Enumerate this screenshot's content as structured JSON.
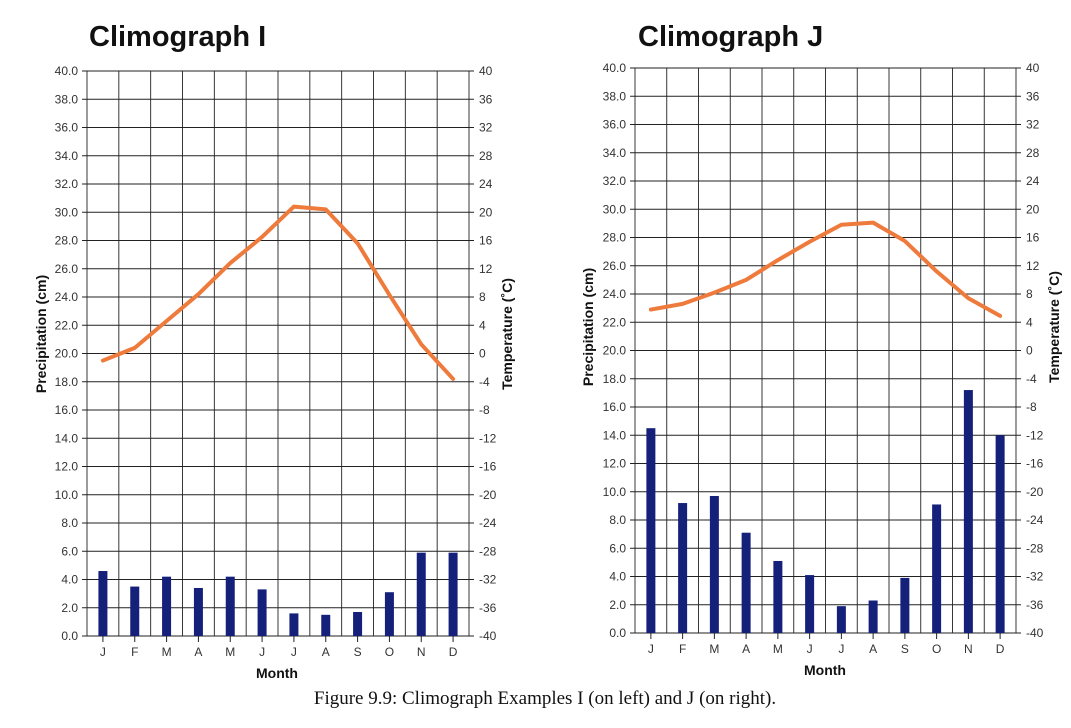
{
  "caption": "Figure 9.9: Climograph Examples I (on left) and J (on right).",
  "colors": {
    "precipitation_bar": "#15207a",
    "temperature_line": "#ee7a3c",
    "grid": "#222222"
  },
  "chart_data": [
    {
      "type": "bar",
      "title": "Climograph I",
      "xlabel": "Month",
      "ylabel": "Precipitation (cm)",
      "y2label": "Temperature (˚C)",
      "categories": [
        "J",
        "F",
        "M",
        "A",
        "M",
        "J",
        "J",
        "A",
        "S",
        "O",
        "N",
        "D"
      ],
      "ylim": [
        0,
        40
      ],
      "y2lim": [
        -40,
        40
      ],
      "y_ticks": [
        "0.0",
        "2.0",
        "4.0",
        "6.0",
        "8.0",
        "10.0",
        "12.0",
        "14.0",
        "16.0",
        "18.0",
        "20.0",
        "22.0",
        "24.0",
        "26.0",
        "28.0",
        "30.0",
        "32.0",
        "34.0",
        "36.0",
        "38.0",
        "40.0"
      ],
      "y2_ticks": [
        "-40",
        "-36",
        "-32",
        "-28",
        "-24",
        "-20",
        "-16",
        "-12",
        "-8",
        "-4",
        "0",
        "4",
        "8",
        "12",
        "16",
        "20",
        "24",
        "28",
        "32",
        "36",
        "40"
      ],
      "grid": true,
      "series": [
        {
          "kind": "bar",
          "axis": "left",
          "values": [
            4.6,
            3.5,
            4.2,
            3.4,
            4.2,
            3.3,
            1.6,
            1.5,
            1.7,
            3.1,
            5.9,
            5.9
          ]
        },
        {
          "kind": "line",
          "axis": "right",
          "values": [
            -1.0,
            0.8,
            4.6,
            8.4,
            12.8,
            16.5,
            20.8,
            20.4,
            15.6,
            8.3,
            1.3,
            -3.6
          ]
        }
      ]
    },
    {
      "type": "bar",
      "title": "Climograph J",
      "xlabel": "Month",
      "ylabel": "Precipitation (cm)",
      "y2label": "Temperature (˚C)",
      "categories": [
        "J",
        "F",
        "M",
        "A",
        "M",
        "J",
        "J",
        "A",
        "S",
        "O",
        "N",
        "D"
      ],
      "ylim": [
        0,
        40
      ],
      "y2lim": [
        -40,
        40
      ],
      "y_ticks": [
        "0.0",
        "2.0",
        "4.0",
        "6.0",
        "8.0",
        "10.0",
        "12.0",
        "14.0",
        "16.0",
        "18.0",
        "20.0",
        "22.0",
        "24.0",
        "26.0",
        "28.0",
        "30.0",
        "32.0",
        "34.0",
        "36.0",
        "38.0",
        "40.0"
      ],
      "y2_ticks": [
        "-40",
        "-36",
        "-32",
        "-28",
        "-24",
        "-20",
        "-16",
        "-12",
        "-8",
        "-4",
        "0",
        "4",
        "8",
        "12",
        "16",
        "20",
        "24",
        "28",
        "32",
        "36",
        "40"
      ],
      "grid": true,
      "series": [
        {
          "kind": "bar",
          "axis": "left",
          "values": [
            14.5,
            9.2,
            9.7,
            7.1,
            5.1,
            4.1,
            1.9,
            2.3,
            3.9,
            9.1,
            17.2,
            14.0
          ]
        },
        {
          "kind": "line",
          "axis": "right",
          "values": [
            5.8,
            6.6,
            8.2,
            10.0,
            12.8,
            15.4,
            17.8,
            18.1,
            15.5,
            11.2,
            7.4,
            4.9
          ]
        }
      ]
    }
  ]
}
